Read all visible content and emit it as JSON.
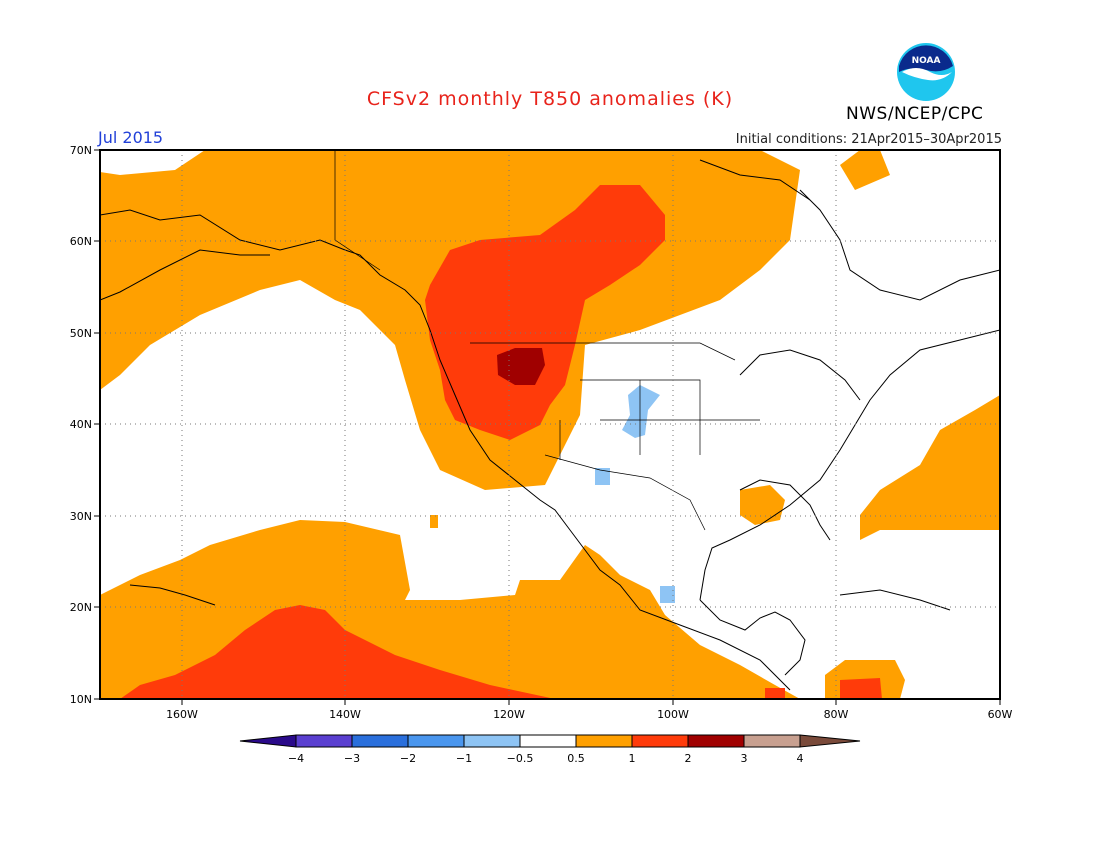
{
  "title": "CFSv2 monthly T850 anomalies (K)",
  "valid_month": "Jul 2015",
  "initial_conditions": "Initial conditions: 21Apr2015–30Apr2015",
  "agency": "NWS/NCEP/CPC",
  "logo": {
    "text": "NOAA",
    "icon": "noaa-logo-icon"
  },
  "map": {
    "lat_ticks": [
      "70N",
      "60N",
      "50N",
      "40N",
      "30N",
      "20N",
      "10N"
    ],
    "lon_ticks": [
      "160W",
      "140W",
      "120W",
      "100W",
      "80W",
      "60W"
    ],
    "lat_range": [
      10,
      70
    ],
    "lon_range": [
      -170,
      -60
    ],
    "grid": true
  },
  "colorbar": {
    "labels": [
      "−4",
      "−3",
      "−2",
      "−1",
      "−0.5",
      "0.5",
      "1",
      "2",
      "3",
      "4"
    ],
    "colors": [
      "#2a0a8a",
      "#5a3fd0",
      "#2a6fdc",
      "#4a96ee",
      "#8ec4f4",
      "#ffffff",
      "#ffa000",
      "#ff3b0a",
      "#a00000",
      "#c8a090",
      "#7a4a3a"
    ]
  },
  "colors": {
    "orange": "#ffa000",
    "red": "#ff3b0a",
    "darkred": "#a00000",
    "lightblue": "#8ec4f4",
    "title": "#e8231b",
    "month": "#2140d8"
  }
}
